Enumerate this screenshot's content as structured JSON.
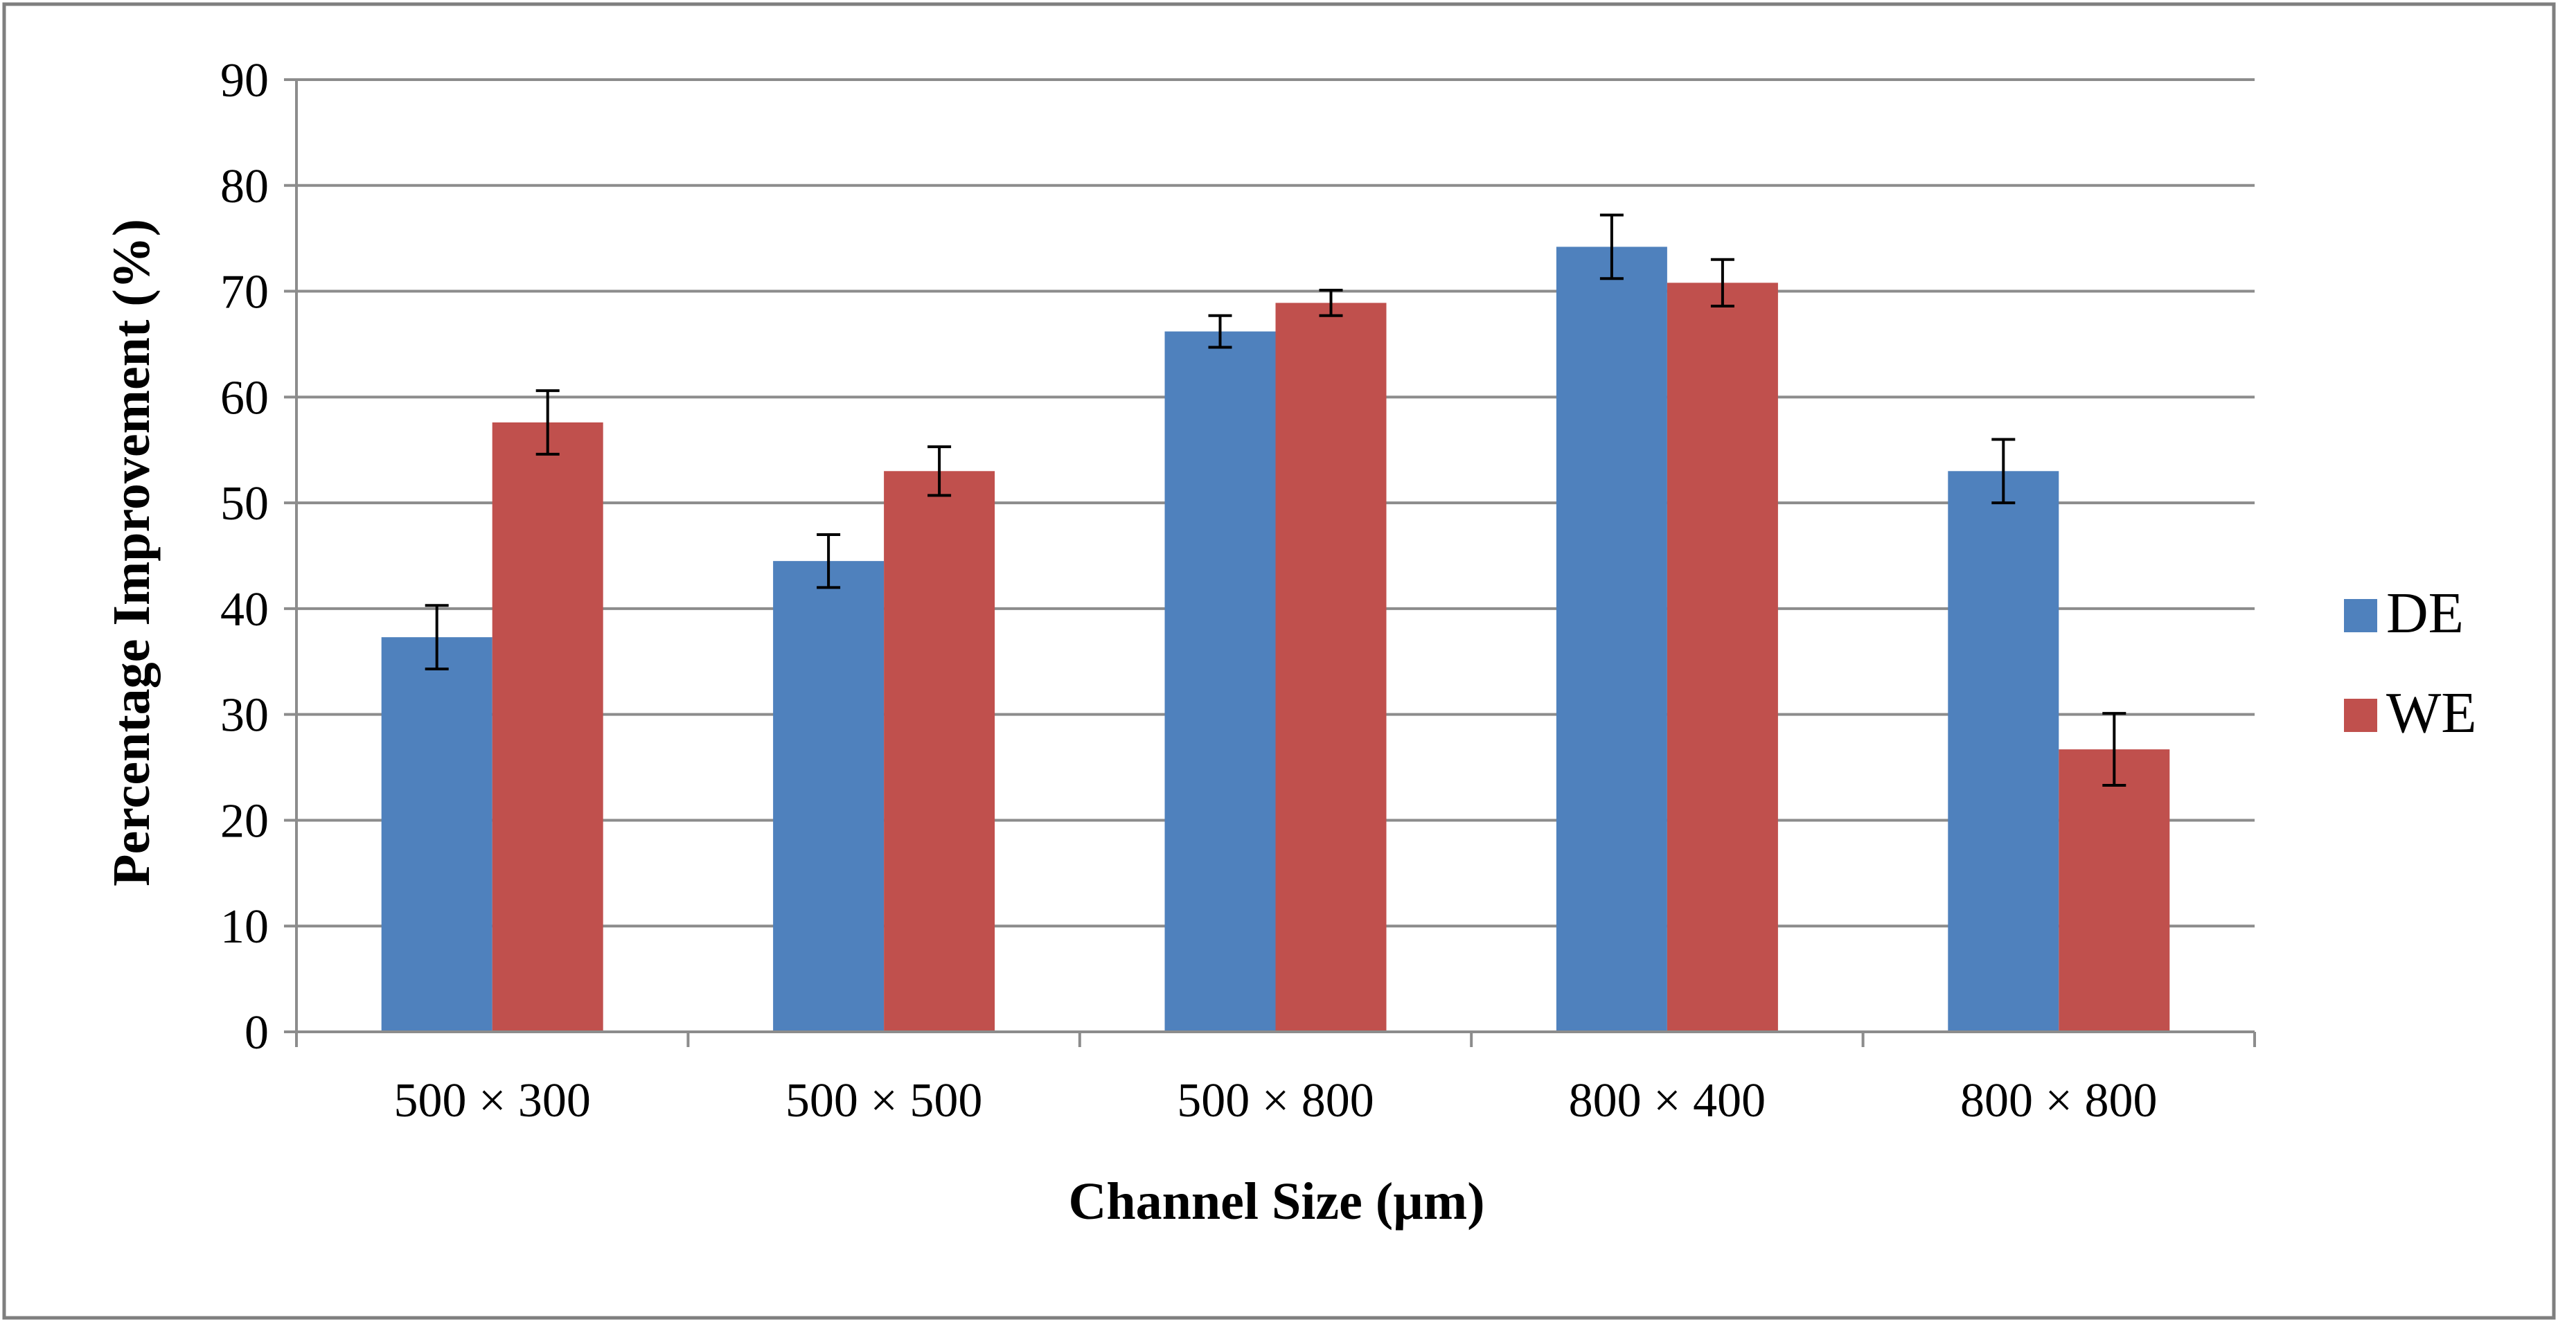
{
  "chart_data": {
    "type": "bar",
    "title": "",
    "xlabel": "Channel Size (µm)",
    "ylabel": "Percentage Improvement (%)",
    "categories": [
      "500 × 300",
      "500 × 500",
      "500 × 800",
      "800 × 400",
      "800 × 800"
    ],
    "ylim": [
      0,
      90
    ],
    "yticks": [
      "0",
      "10",
      "20",
      "30",
      "40",
      "50",
      "60",
      "70",
      "80",
      "90"
    ],
    "grid": true,
    "legend_position": "right",
    "series": [
      {
        "name": "DE",
        "color": "#4F81BD",
        "values": [
          37.3,
          44.5,
          66.2,
          74.2,
          53.0
        ],
        "errors": [
          3.0,
          2.5,
          1.5,
          3.0,
          3.0
        ]
      },
      {
        "name": "WE",
        "color": "#C0504D",
        "values": [
          57.6,
          53.0,
          68.9,
          70.8,
          26.7
        ],
        "errors": [
          3.0,
          2.3,
          1.2,
          2.2,
          3.4
        ]
      }
    ]
  }
}
